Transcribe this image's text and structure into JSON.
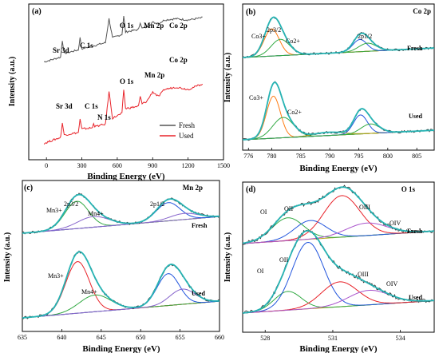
{
  "figure": {
    "colors": {
      "fresh_line": "#555555",
      "used_line": "#e8232a",
      "raw": "#2a2a2a",
      "envelope": "#26b3b3",
      "background": "#b8a21a",
      "co3": "#ff7a10",
      "co2": "#33aa44",
      "mn3_fresh": "#33aa44",
      "mn3_used": "#e8232a",
      "mn4": "#8866cc",
      "mn4_used": "#33aa44",
      "oi": "#33aa44",
      "oii": "#2255dd",
      "oiii": "#e8232a",
      "oiv": "#aa55cc"
    }
  },
  "chart_data": [
    {
      "panel": "(a)",
      "type": "line",
      "title": "",
      "xlabel": "Binding Energy (eV)",
      "ylabel": "Intensity (a.u.)",
      "xlim": [
        -150,
        1500
      ],
      "xticks": [
        "0",
        "300",
        "600",
        "900",
        "1200",
        "1500"
      ],
      "series": [
        {
          "name": "Fresh",
          "x": [
            -20,
            120,
            135,
            150,
            270,
            285,
            300,
            500,
            530,
            560,
            640,
            655,
            670,
            780,
            795,
            810,
            850,
            900,
            950,
            1000,
            1100,
            1200,
            1330
          ],
          "y": [
            3.75,
            3.95,
            4.65,
            4.1,
            4.25,
            4.75,
            4.3,
            4.55,
            5.55,
            4.75,
            4.9,
            5.65,
            5.0,
            5.1,
            5.4,
            5.15,
            5.2,
            5.4,
            5.35,
            5.5,
            5.55,
            5.5,
            5.6
          ]
        },
        {
          "name": "Used",
          "x": [
            -20,
            120,
            135,
            150,
            270,
            285,
            300,
            390,
            400,
            410,
            500,
            530,
            560,
            640,
            655,
            670,
            780,
            795,
            810,
            850,
            900,
            950,
            1000,
            1100,
            1200,
            1330
          ],
          "y": [
            0.35,
            0.6,
            1.2,
            0.7,
            0.8,
            1.35,
            0.95,
            1.0,
            1.2,
            1.05,
            1.15,
            2.5,
            1.4,
            1.6,
            2.6,
            1.8,
            1.9,
            2.3,
            2.0,
            2.1,
            2.5,
            2.3,
            2.6,
            2.7,
            2.6,
            2.85
          ]
        }
      ],
      "annotations": {
        "fresh": [
          "Sr 3d",
          "C 1s",
          "O 1s",
          "Mn 2p",
          "Co 2p"
        ],
        "used": [
          "Sr 3d",
          "C 1s",
          "N 1s",
          "O 1s",
          "Mn 2p",
          "Co 2p"
        ]
      },
      "legend": {
        "placement": "bottom-right",
        "entries": [
          "Fresh",
          "Used"
        ]
      }
    },
    {
      "panel": "(b)",
      "type": "line",
      "title": "Co 2p",
      "xlabel": "Binding Energy (eV)",
      "ylabel": "Intensity (a.u.)",
      "xlim": [
        775,
        808
      ],
      "xticks": [
        "776",
        "780",
        "785",
        "790",
        "795",
        "800",
        "805"
      ],
      "fresh_peaks": [
        {
          "name": "Co3+",
          "center": 780.0,
          "height": 1.0,
          "width": 1.3
        },
        {
          "name": "Co2+",
          "center": 781.5,
          "height": 0.6,
          "width": 1.6
        },
        {
          "name": "Co2p1/2 Co3+",
          "center": 795.2,
          "height": 0.45,
          "width": 1.2
        },
        {
          "name": "Co2p1/2 Co2+",
          "center": 796.5,
          "height": 0.3,
          "width": 1.5
        }
      ],
      "used_peaks": [
        {
          "name": "Co3+",
          "center": 780.3,
          "height": 1.55,
          "width": 1.2
        },
        {
          "name": "Co2+",
          "center": 782.0,
          "height": 0.75,
          "width": 1.8
        },
        {
          "name": "Sat",
          "center": 789.8,
          "height": 0.12,
          "width": 2.5
        },
        {
          "name": "Co2p1/2 Co3+",
          "center": 795.3,
          "height": 0.7,
          "width": 1.2
        },
        {
          "name": "Co2p1/2 Co2+",
          "center": 797.0,
          "height": 0.35,
          "width": 1.6
        }
      ],
      "labels": {
        "co2p32": "2p3/2",
        "co3": "Co3+",
        "co2": "Co2+",
        "co2p12": "2p1/2",
        "fresh": "Fresh",
        "used": "Used"
      }
    },
    {
      "panel": "(c)",
      "type": "line",
      "title": "Mn 2p",
      "xlabel": "Binding Energy (eV)",
      "ylabel": "Intensity (a.u.)",
      "xlim": [
        635,
        660
      ],
      "xticks": [
        "635",
        "640",
        "645",
        "650",
        "655",
        "660"
      ],
      "fresh_peaks": [
        {
          "name": "Mn3+",
          "center": 641.9,
          "height": 0.9,
          "width": 1.5
        },
        {
          "name": "Mn4+",
          "center": 644.0,
          "height": 0.35,
          "width": 2.0
        },
        {
          "name": "Mn2p1/2 Mn3+",
          "center": 653.5,
          "height": 0.6,
          "width": 1.5
        },
        {
          "name": "Mn2p1/2 Mn4+",
          "center": 655.5,
          "height": 0.2,
          "width": 1.8
        }
      ],
      "used_peaks": [
        {
          "name": "Mn3+",
          "center": 642.0,
          "height": 1.7,
          "width": 1.5
        },
        {
          "name": "Mn4+",
          "center": 644.2,
          "height": 0.55,
          "width": 2.0
        },
        {
          "name": "Mn2p1/2 Mn3+",
          "center": 653.5,
          "height": 1.05,
          "width": 1.4
        },
        {
          "name": "Mn2p1/2 Mn4+",
          "center": 655.3,
          "height": 0.5,
          "width": 1.6
        }
      ],
      "labels": {
        "mn2p32": "2p3/2",
        "mn3": "Mn3+",
        "mn4": "Mn4+",
        "mn2p12": "2p1/2",
        "fresh": "Fresh",
        "used": "Used"
      }
    },
    {
      "panel": "(d)",
      "type": "line",
      "title": "O 1s",
      "xlabel": "Binding Energy (eV)",
      "ylabel": "Intensity (a.u.)",
      "xlim": [
        527.0,
        535.5
      ],
      "xticks": [
        "528",
        "531",
        "534"
      ],
      "fresh_peaks": [
        {
          "name": "OI",
          "center": 529.0,
          "height": 0.55,
          "width": 0.7
        },
        {
          "name": "OII",
          "center": 530.0,
          "height": 0.45,
          "width": 0.7
        },
        {
          "name": "OIII",
          "center": 531.4,
          "height": 1.0,
          "width": 0.8
        },
        {
          "name": "OIV",
          "center": 532.5,
          "height": 0.3,
          "width": 0.9
        }
      ],
      "used_peaks": [
        {
          "name": "OI",
          "center": 529.0,
          "height": 0.45,
          "width": 0.6
        },
        {
          "name": "OII",
          "center": 529.9,
          "height": 1.6,
          "width": 0.7
        },
        {
          "name": "OIII",
          "center": 531.3,
          "height": 0.6,
          "width": 0.8
        },
        {
          "name": "OIV",
          "center": 532.6,
          "height": 0.35,
          "width": 0.9
        }
      ],
      "labels": {
        "oi": "OI",
        "oii": "OII",
        "oiii": "OIII",
        "oiv": "OIV",
        "fresh": "Fresh",
        "used": "Used"
      }
    }
  ]
}
